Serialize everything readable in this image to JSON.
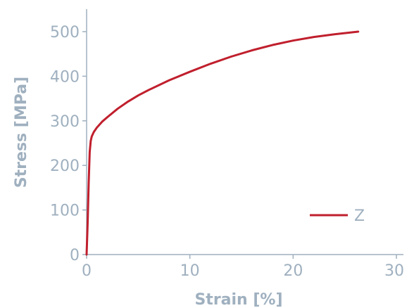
{
  "colors": {
    "axis": "#9fb0bf",
    "series": "#c01f2d",
    "background": "#ffffff"
  },
  "chart_data": {
    "type": "line",
    "title": "",
    "xlabel": "Strain [%]",
    "ylabel": "Stress [MPa]",
    "xlim": [
      0,
      30
    ],
    "ylim": [
      0,
      500
    ],
    "xticks": [
      0,
      10,
      20,
      30
    ],
    "yticks": [
      0,
      100,
      200,
      300,
      400,
      500
    ],
    "grid": false,
    "legend": {
      "position": "bottom-right"
    },
    "series": [
      {
        "name": "Z",
        "color": "#c01f2d",
        "x": [
          0,
          0.1,
          0.2,
          0.3,
          0.4,
          0.5,
          0.7,
          1.0,
          1.5,
          2,
          3,
          4,
          5,
          6,
          8,
          10,
          12,
          14,
          16,
          18,
          20,
          22,
          24,
          26.3
        ],
        "y": [
          0,
          70,
          160,
          230,
          255,
          265,
          275,
          285,
          298,
          308,
          327,
          343,
          357,
          369,
          391,
          410,
          428,
          444,
          458,
          470,
          480,
          488,
          494,
          500
        ]
      }
    ]
  }
}
